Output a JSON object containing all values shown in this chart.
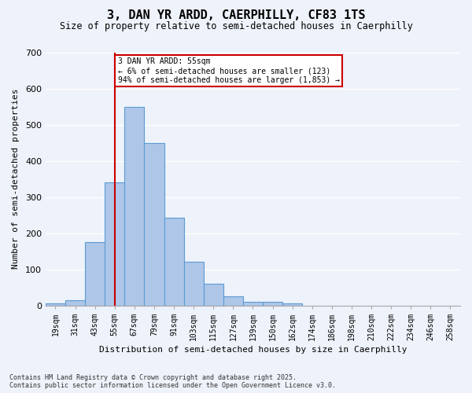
{
  "title": "3, DAN YR ARDD, CAERPHILLY, CF83 1TS",
  "subtitle": "Size of property relative to semi-detached houses in Caerphilly",
  "xlabel": "Distribution of semi-detached houses by size in Caerphilly",
  "ylabel": "Number of semi-detached properties",
  "bin_labels": [
    "19sqm",
    "31sqm",
    "43sqm",
    "55sqm",
    "67sqm",
    "79sqm",
    "91sqm",
    "103sqm",
    "115sqm",
    "127sqm",
    "139sqm",
    "150sqm",
    "162sqm",
    "174sqm",
    "186sqm",
    "198sqm",
    "210sqm",
    "222sqm",
    "234sqm",
    "246sqm",
    "258sqm"
  ],
  "bar_values": [
    5,
    14,
    175,
    340,
    548,
    449,
    242,
    121,
    60,
    25,
    11,
    10,
    6,
    0,
    0,
    0,
    0,
    0,
    0,
    0,
    0
  ],
  "bar_color": "#AEC6E8",
  "bar_edge_color": "#5B9BD5",
  "vline_x": 3,
  "vline_color": "#CC0000",
  "annotation_text": "3 DAN YR ARDD: 55sqm\n← 6% of semi-detached houses are smaller (123)\n94% of semi-detached houses are larger (1,853) →",
  "annotation_box_color": "#CC0000",
  "ylim": [
    0,
    700
  ],
  "yticks": [
    0,
    100,
    200,
    300,
    400,
    500,
    600,
    700
  ],
  "footer_line1": "Contains HM Land Registry data © Crown copyright and database right 2025.",
  "footer_line2": "Contains public sector information licensed under the Open Government Licence v3.0.",
  "bg_color": "#EEF2FA",
  "grid_color": "#FFFFFF"
}
